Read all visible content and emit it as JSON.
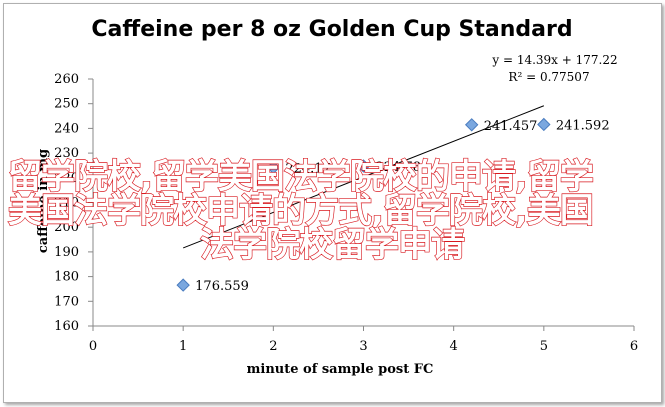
{
  "chart_data": {
    "type": "scatter",
    "title": "Caffeine per 8 oz Golden Cup Standard",
    "xlabel": "minute of sample post FC",
    "ylabel": "caffeine in mg",
    "xlim": [
      0,
      6
    ],
    "ylim": [
      160,
      260
    ],
    "x_ticks": [
      "0",
      "1",
      "2",
      "3",
      "4",
      "5",
      "6"
    ],
    "y_ticks": [
      "160",
      "170",
      "180",
      "190",
      "200",
      "210",
      "220",
      "230",
      "240",
      "250",
      "260"
    ],
    "grid": false,
    "marker_color": "#7aa7df",
    "marker_stroke": "#4a7cbf",
    "trendline_color": "#000000",
    "points": [
      {
        "x": 1,
        "y": 176.559,
        "label": "176.559"
      },
      {
        "x": 2,
        "y": 224.17,
        "label": "224.17"
      },
      {
        "x": 3,
        "y": 224.78,
        "label": "224.78"
      },
      {
        "x": 4.2,
        "y": 241.457,
        "label": "241.457"
      },
      {
        "x": 5,
        "y": 241.592,
        "label": "241.592"
      }
    ],
    "trendline": {
      "slope": 14.39,
      "intercept": 177.22,
      "x_range": [
        1,
        5
      ],
      "equation": "y = 14.39x + 177.22",
      "r_squared": "R² = 0.77507"
    }
  },
  "overlay_text": {
    "line1": "留学院校,留学美国法学院校的申请,留学",
    "line2": "美国法学院校申请的方式,留学院校,美国",
    "line3": "法学院校留学申请"
  }
}
